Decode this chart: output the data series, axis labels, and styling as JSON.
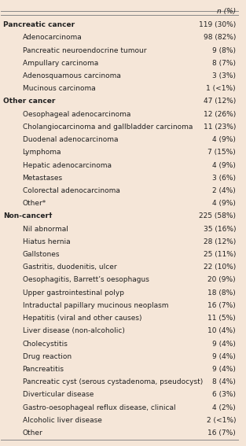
{
  "bg_color": "#f5e6d8",
  "header": "n (%)",
  "rows": [
    {
      "label": "Pancreatic cancer",
      "value": "119 (30%)",
      "indent": 0,
      "bold": true
    },
    {
      "label": "Adenocarcinoma",
      "value": "98 (82%)",
      "indent": 1,
      "bold": false
    },
    {
      "label": "Pancreatic neuroendocrine tumour",
      "value": "9 (8%)",
      "indent": 1,
      "bold": false
    },
    {
      "label": "Ampullary carcinoma",
      "value": "8 (7%)",
      "indent": 1,
      "bold": false
    },
    {
      "label": "Adenosquamous carcinoma",
      "value": "3 (3%)",
      "indent": 1,
      "bold": false
    },
    {
      "label": "Mucinous carcinoma",
      "value": "1 (<1%)",
      "indent": 1,
      "bold": false
    },
    {
      "label": "Other cancer",
      "value": "47 (12%)",
      "indent": 0,
      "bold": true
    },
    {
      "label": "Oesophageal adenocarcinoma",
      "value": "12 (26%)",
      "indent": 1,
      "bold": false
    },
    {
      "label": "Cholangiocarcinoma and gallbladder carcinoma",
      "value": "11 (23%)",
      "indent": 1,
      "bold": false
    },
    {
      "label": "Duodenal adenocarcinoma",
      "value": "4 (9%)",
      "indent": 1,
      "bold": false
    },
    {
      "label": "Lymphoma",
      "value": "7 (15%)",
      "indent": 1,
      "bold": false
    },
    {
      "label": "Hepatic adenocarcinoma",
      "value": "4 (9%)",
      "indent": 1,
      "bold": false
    },
    {
      "label": "Metastases",
      "value": "3 (6%)",
      "indent": 1,
      "bold": false
    },
    {
      "label": "Colorectal adenocarcinoma",
      "value": "2 (4%)",
      "indent": 1,
      "bold": false
    },
    {
      "label": "Other*",
      "value": "4 (9%)",
      "indent": 1,
      "bold": false
    },
    {
      "label": "Non-cancer†",
      "value": "225 (58%)",
      "indent": 0,
      "bold": true
    },
    {
      "label": "Nil abnormal",
      "value": "35 (16%)",
      "indent": 1,
      "bold": false
    },
    {
      "label": "Hiatus hernia",
      "value": "28 (12%)",
      "indent": 1,
      "bold": false
    },
    {
      "label": "Gallstones",
      "value": "25 (11%)",
      "indent": 1,
      "bold": false
    },
    {
      "label": "Gastritis, duodenitis, ulcer",
      "value": "22 (10%)",
      "indent": 1,
      "bold": false
    },
    {
      "label": "Oesophagitis, Barrett’s oesophagus",
      "value": "20 (9%)",
      "indent": 1,
      "bold": false
    },
    {
      "label": "Upper gastrointestinal polyp",
      "value": "18 (8%)",
      "indent": 1,
      "bold": false
    },
    {
      "label": "Intraductal papillary mucinous neoplasm",
      "value": "16 (7%)",
      "indent": 1,
      "bold": false
    },
    {
      "label": "Hepatitis (viral and other causes)",
      "value": "11 (5%)",
      "indent": 1,
      "bold": false
    },
    {
      "label": "Liver disease (non-alcoholic)",
      "value": "10 (4%)",
      "indent": 1,
      "bold": false
    },
    {
      "label": "Cholecystitis",
      "value": "9 (4%)",
      "indent": 1,
      "bold": false
    },
    {
      "label": "Drug reaction",
      "value": "9 (4%)",
      "indent": 1,
      "bold": false
    },
    {
      "label": "Pancreatitis",
      "value": "9 (4%)",
      "indent": 1,
      "bold": false
    },
    {
      "label": "Pancreatic cyst (serous cystadenoma, pseudocyst)",
      "value": "8 (4%)",
      "indent": 1,
      "bold": false
    },
    {
      "label": "Diverticular disease",
      "value": "6 (3%)",
      "indent": 1,
      "bold": false
    },
    {
      "label": "Gastro-oesophageal reflux disease, clinical",
      "value": "4 (2%)",
      "indent": 1,
      "bold": false
    },
    {
      "label": "Alcoholic liver disease",
      "value": "2 (<1%)",
      "indent": 1,
      "bold": false
    },
    {
      "label": "Other",
      "value": "16 (7%)",
      "indent": 1,
      "bold": false
    }
  ],
  "font_size": 6.5,
  "header_font_size": 6.5,
  "indent_size": 0.08,
  "line_color": "#888888",
  "text_color": "#222222"
}
